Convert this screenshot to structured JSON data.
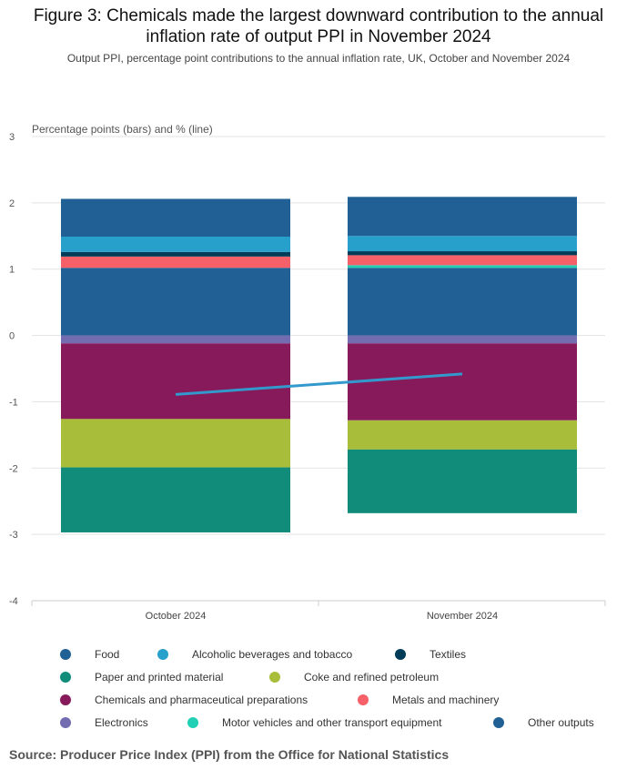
{
  "title_line1": "Figure 3: Chemicals made the largest downward contribution to the annual",
  "title_line2": "inflation rate of output PPI in November 2024",
  "subtitle": "Output PPI, percentage point contributions to the annual inflation rate, UK, October and November 2024",
  "source": "Source: Producer Price Index (PPI) from the Office for National Statistics",
  "chart_data": {
    "type": "bar",
    "stacked": true,
    "ylabel": "Percentage points (bars) and % (line)",
    "ylim": [
      -4,
      3
    ],
    "yticks": [
      "3",
      "2",
      "1",
      "0",
      "-1",
      "-2",
      "-3",
      "-4"
    ],
    "ytick_values": [
      3,
      2,
      1,
      0,
      -1,
      -2,
      -3,
      -4
    ],
    "categories": [
      "October 2024",
      "November 2024"
    ],
    "series": [
      {
        "name": "Food",
        "color": "#206095",
        "values": [
          1.02,
          1.02
        ]
      },
      {
        "name": "Alcoholic beverages and tobacco",
        "color": "#27A0CC",
        "values": [
          0.23,
          0.23
        ]
      },
      {
        "name": "Textiles",
        "color": "#003C57",
        "values": [
          0.07,
          0.06
        ]
      },
      {
        "name": "Paper and printed material",
        "color": "#118C7B",
        "values": [
          -0.98,
          -0.96
        ]
      },
      {
        "name": "Coke and refined petroleum",
        "color": "#A8BD3A",
        "values": [
          -0.73,
          -0.44
        ]
      },
      {
        "name": "Chemicals and pharmaceutical preparations",
        "color": "#871A5B",
        "values": [
          -1.14,
          -1.16
        ]
      },
      {
        "name": "Metals and machinery",
        "color": "#F66068",
        "values": [
          0.17,
          0.15
        ]
      },
      {
        "name": "Electronics",
        "color": "#746CB1",
        "values": [
          -0.12,
          -0.12
        ]
      },
      {
        "name": "Motor vehicles and other transport equipment",
        "color": "#22D0B6",
        "values": [
          0.0,
          0.04
        ]
      },
      {
        "name": "Other outputs",
        "color": "#206095",
        "values": [
          0.57,
          0.59
        ]
      }
    ],
    "stack_order_positive": [
      "Food",
      "Motor vehicles and other transport equipment",
      "Metals and machinery",
      "Textiles",
      "Alcoholic beverages and tobacco",
      "Other outputs"
    ],
    "stack_order_negative": [
      "Electronics",
      "Chemicals and pharmaceutical preparations",
      "Coke and refined petroleum",
      "Paper and printed material"
    ],
    "line": {
      "name": "Output PPI annual rate",
      "color": "#3399CC",
      "values": [
        -0.89,
        -0.58
      ]
    }
  },
  "legend_rows": [
    [
      {
        "label": "Food",
        "color": "#206095"
      },
      {
        "label": "Alcoholic beverages and tobacco",
        "color": "#27A0CC"
      },
      {
        "label": "Textiles",
        "color": "#003C57"
      }
    ],
    [
      {
        "label": "Paper and printed material",
        "color": "#118C7B"
      },
      {
        "label": "Coke and refined petroleum",
        "color": "#A8BD3A"
      }
    ],
    [
      {
        "label": "Chemicals and pharmaceutical preparations",
        "color": "#871A5B"
      },
      {
        "label": "Metals and machinery",
        "color": "#F66068"
      }
    ],
    [
      {
        "label": "Electronics",
        "color": "#746CB1"
      },
      {
        "label": "Motor vehicles and other transport equipment",
        "color": "#22D0B6"
      },
      {
        "label": "Other outputs",
        "color": "#206095"
      }
    ]
  ]
}
